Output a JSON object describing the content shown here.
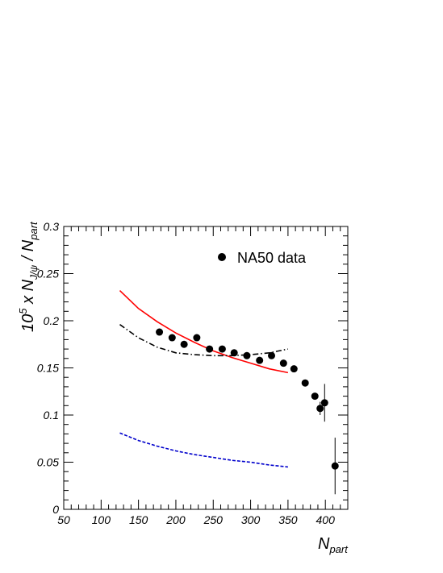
{
  "chart_data": {
    "type": "scatter",
    "title": "",
    "xlabel": {
      "main": "N",
      "sub": "part"
    },
    "ylabel": {
      "pre": "10",
      "sup": "5",
      "mid": " x N",
      "sub1": "J/ψ",
      "slash": " / N",
      "sub2": "part"
    },
    "xlim": [
      50,
      430
    ],
    "ylim": [
      0,
      0.3
    ],
    "x_ticks": [
      50,
      100,
      150,
      200,
      250,
      300,
      350,
      400
    ],
    "y_ticks": [
      0,
      0.05,
      0.1,
      0.15,
      0.2,
      0.25,
      0.3
    ],
    "x_tick_labels": [
      "50",
      "100",
      "150",
      "200",
      "250",
      "300",
      "350",
      "400"
    ],
    "y_tick_labels": [
      "0",
      "0.05",
      "0.1",
      "0.15",
      "0.2",
      "0.25",
      "0.3"
    ],
    "grid": false,
    "legend": {
      "position": "top-right",
      "entries": [
        {
          "label": "NA50 data",
          "marker": "filled-circle"
        }
      ]
    },
    "series": [
      {
        "kind": "points",
        "color": "#000000",
        "x": [
          178,
          195,
          211,
          228,
          245,
          262,
          278,
          295,
          312,
          328,
          344,
          358,
          373,
          386,
          393,
          399,
          413
        ],
        "y": [
          0.188,
          0.182,
          0.175,
          0.182,
          0.17,
          0.17,
          0.166,
          0.163,
          0.158,
          0.163,
          0.155,
          0.149,
          0.134,
          0.12,
          0.107,
          0.113,
          0.046
        ],
        "yerr": [
          0,
          0,
          0,
          0,
          0,
          0,
          0,
          0,
          0,
          0,
          0,
          0,
          0,
          0,
          0.007,
          0.02,
          0.03
        ]
      },
      {
        "kind": "curve",
        "color": "#ff0000",
        "dash": "solid",
        "x": [
          125,
          150,
          175,
          200,
          225,
          250,
          275,
          300,
          325,
          350
        ],
        "y": [
          0.232,
          0.213,
          0.199,
          0.187,
          0.177,
          0.168,
          0.161,
          0.155,
          0.149,
          0.145
        ]
      },
      {
        "kind": "curve",
        "color": "#000000",
        "dash": "dashdot",
        "x": [
          125,
          150,
          175,
          200,
          225,
          250,
          275,
          300,
          325,
          350
        ],
        "y": [
          0.196,
          0.182,
          0.172,
          0.166,
          0.164,
          0.163,
          0.163,
          0.164,
          0.166,
          0.17
        ]
      },
      {
        "kind": "curve",
        "color": "#0000cc",
        "dash": "dashed",
        "x": [
          125,
          150,
          175,
          200,
          225,
          250,
          275,
          300,
          325,
          350
        ],
        "y": [
          0.081,
          0.073,
          0.067,
          0.062,
          0.058,
          0.055,
          0.052,
          0.05,
          0.047,
          0.045
        ]
      }
    ]
  }
}
